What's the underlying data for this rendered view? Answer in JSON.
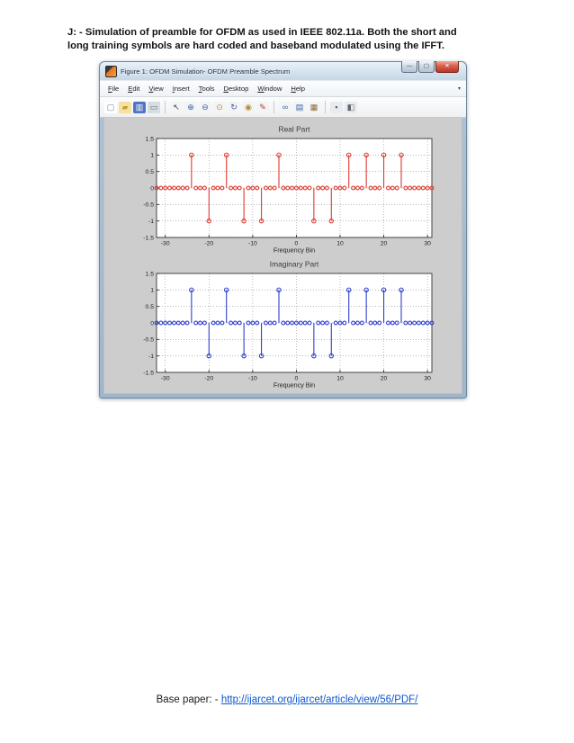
{
  "page": {
    "heading": "J: - Simulation of preamble for OFDM as used in IEEE 802.11a. Both the short and long training symbols are hard coded and baseband modulated using the IFFT.",
    "footer": {
      "prefix": "Base paper: - ",
      "link": "http://ijarcet.org/ijarcet/article/view/56/PDF/",
      "link_color": "#0b57d0"
    }
  },
  "window": {
    "title": "Figure 1: OFDM Simulation- OFDM Preamble Spectrum",
    "controls": {
      "minimize": "—",
      "maximize": "▢",
      "close": "✕"
    },
    "menubar": {
      "items": [
        "File",
        "Edit",
        "View",
        "Insert",
        "Tools",
        "Desktop",
        "Window",
        "Help"
      ],
      "overflow_arrow": "▾"
    },
    "toolbar": {
      "icons": [
        {
          "name": "new-figure",
          "glyph": "▢",
          "fg": "#7a8699",
          "bg": "#ffffff"
        },
        {
          "name": "open-file",
          "glyph": "▰",
          "fg": "#c79a35",
          "bg": "#f6e2a0"
        },
        {
          "name": "save-figure",
          "glyph": "▥",
          "fg": "#ffffff",
          "bg": "#4f74c6"
        },
        {
          "name": "print-figure",
          "glyph": "▭",
          "fg": "#5b6570",
          "bg": "#d7dde3"
        },
        {
          "sep": true
        },
        {
          "name": "edit-plot",
          "glyph": "↖",
          "fg": "#38404a",
          "bg": "#f3f4f6"
        },
        {
          "name": "zoom-in",
          "glyph": "⊕",
          "fg": "#3a5f9e",
          "bg": "#f3f4f6"
        },
        {
          "name": "zoom-out",
          "glyph": "⊖",
          "fg": "#3a5f9e",
          "bg": "#f3f4f6"
        },
        {
          "name": "pan",
          "glyph": "⊙",
          "fg": "#b58a4a",
          "bg": "#f3f4f6"
        },
        {
          "name": "rotate-3d",
          "glyph": "↻",
          "fg": "#3a5f9e",
          "bg": "#f3f4f6"
        },
        {
          "name": "data-cursor",
          "glyph": "◉",
          "fg": "#b58a2a",
          "bg": "#f3f4f6"
        },
        {
          "name": "brush-data",
          "glyph": "✎",
          "fg": "#b03a30",
          "bg": "#f3f4f6"
        },
        {
          "sep": true
        },
        {
          "name": "link-plot",
          "glyph": "∞",
          "fg": "#3a5f9e",
          "bg": "#f3f4f6"
        },
        {
          "name": "insert-colorbar",
          "glyph": "▤",
          "fg": "#3a5f9e",
          "bg": "#f3f4f6"
        },
        {
          "name": "insert-legend",
          "glyph": "▦",
          "fg": "#8a6a3a",
          "bg": "#f3f4f6"
        },
        {
          "sep": true
        },
        {
          "name": "hide-plot-tools",
          "glyph": "▪",
          "fg": "#5b6570",
          "bg": "#e9ebee"
        },
        {
          "name": "show-plot-tools",
          "glyph": "◧",
          "fg": "#5b6570",
          "bg": "#e9ebee"
        }
      ]
    }
  },
  "chart_data": [
    {
      "type": "stem",
      "title": "Real Part",
      "xlabel": "Frequency Bin",
      "color": "#e03a30",
      "xlim": [
        -32,
        31
      ],
      "ylim": [
        -1.5,
        1.5
      ],
      "xticks": [
        -30,
        -20,
        -10,
        0,
        10,
        20,
        30
      ],
      "yticks": [
        1.5,
        1,
        0.5,
        0,
        -0.5,
        -1,
        -1.5
      ],
      "ytick_labels": [
        "1.5",
        "1",
        "0.5",
        "0",
        "-0.5",
        "-1",
        "-1.5"
      ],
      "grid": true,
      "x_start": -32,
      "values": [
        0,
        0,
        0,
        0,
        0,
        0,
        0,
        0,
        1,
        0,
        0,
        0,
        -1,
        0,
        0,
        0,
        1,
        0,
        0,
        0,
        -1,
        0,
        0,
        0,
        -1,
        0,
        0,
        0,
        1,
        0,
        0,
        0,
        0,
        0,
        0,
        0,
        -1,
        0,
        0,
        0,
        -1,
        0,
        0,
        0,
        1,
        0,
        0,
        0,
        1,
        0,
        0,
        0,
        1,
        0,
        0,
        0,
        1,
        0,
        0,
        0,
        0,
        0,
        0,
        0
      ]
    },
    {
      "type": "stem",
      "title": "Imaginary Part",
      "xlabel": "Frequency Bin",
      "color": "#2f3fd0",
      "xlim": [
        -32,
        31
      ],
      "ylim": [
        -1.5,
        1.5
      ],
      "xticks": [
        -30,
        -20,
        -10,
        0,
        10,
        20,
        30
      ],
      "yticks": [
        1.5,
        1,
        0.5,
        0,
        -0.5,
        -1,
        -1.5
      ],
      "ytick_labels": [
        "1.5",
        "1",
        "0.5",
        "0",
        "-0.5",
        "-1",
        "-1.5"
      ],
      "grid": true,
      "x_start": -32,
      "values": [
        0,
        0,
        0,
        0,
        0,
        0,
        0,
        0,
        1,
        0,
        0,
        0,
        -1,
        0,
        0,
        0,
        1,
        0,
        0,
        0,
        -1,
        0,
        0,
        0,
        -1,
        0,
        0,
        0,
        1,
        0,
        0,
        0,
        0,
        0,
        0,
        0,
        -1,
        0,
        0,
        0,
        -1,
        0,
        0,
        0,
        1,
        0,
        0,
        0,
        1,
        0,
        0,
        0,
        1,
        0,
        0,
        0,
        1,
        0,
        0,
        0,
        0,
        0,
        0,
        0
      ]
    }
  ]
}
